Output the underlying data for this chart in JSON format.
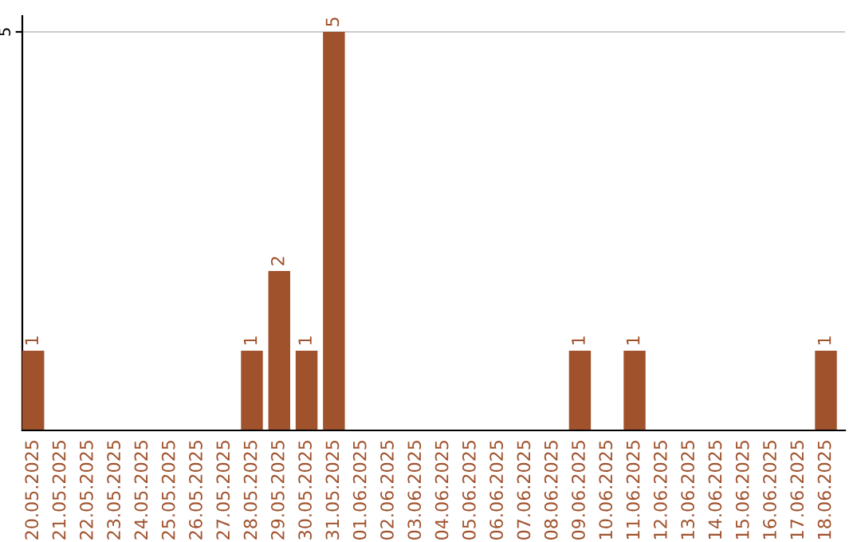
{
  "chart_data": {
    "type": "bar",
    "categories": [
      "20.05.2025",
      "21.05.2025",
      "22.05.2025",
      "23.05.2025",
      "24.05.2025",
      "25.05.2025",
      "26.05.2025",
      "27.05.2025",
      "28.05.2025",
      "29.05.2025",
      "30.05.2025",
      "31.05.2025",
      "01.06.2025",
      "02.06.2025",
      "03.06.2025",
      "04.06.2025",
      "05.06.2025",
      "06.06.2025",
      "07.06.2025",
      "08.06.2025",
      "09.06.2025",
      "10.06.2025",
      "11.06.2025",
      "12.06.2025",
      "13.06.2025",
      "14.06.2025",
      "15.06.2025",
      "16.06.2025",
      "17.06.2025",
      "18.06.2025"
    ],
    "values": [
      1,
      0,
      0,
      0,
      0,
      0,
      0,
      0,
      1,
      2,
      1,
      5,
      0,
      0,
      0,
      0,
      0,
      0,
      0,
      0,
      1,
      0,
      1,
      0,
      0,
      0,
      0,
      0,
      0,
      1
    ],
    "value_labels": [
      "1",
      null,
      null,
      null,
      null,
      null,
      null,
      null,
      "1",
      "2",
      "1",
      "5",
      null,
      null,
      null,
      null,
      null,
      null,
      null,
      null,
      "1",
      null,
      "1",
      null,
      null,
      null,
      null,
      null,
      null,
      "1"
    ],
    "color": "#a0522d",
    "ylim": [
      0,
      5.2
    ],
    "yticks": [
      5
    ],
    "grid": "y"
  }
}
